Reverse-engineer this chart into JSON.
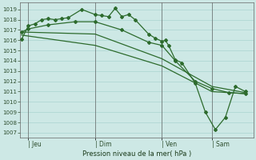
{
  "xlabel": "Pression niveau de la mer( hPa )",
  "ylim": [
    1006.5,
    1019.7
  ],
  "yticks": [
    1007,
    1008,
    1009,
    1010,
    1011,
    1012,
    1013,
    1014,
    1015,
    1016,
    1017,
    1018,
    1019
  ],
  "background_color": "#cde8e5",
  "grid_color": "#aad4d0",
  "line_color": "#2d6b2d",
  "xtick_labels": [
    "| Jeu",
    "| Dim",
    "| Ven",
    "| Sam"
  ],
  "xtick_positions": [
    10,
    90,
    170,
    230
  ],
  "xlim": [
    0,
    280
  ],
  "series1_x": [
    2,
    10,
    18,
    26,
    34,
    42,
    50,
    58,
    74,
    90,
    98,
    106,
    114,
    122,
    130,
    138,
    154,
    162,
    170,
    174,
    178,
    186,
    194,
    210,
    222,
    234,
    246,
    258,
    270
  ],
  "series1_y": [
    1016.1,
    1017.4,
    1017.6,
    1018.0,
    1018.1,
    1018.0,
    1018.1,
    1018.2,
    1019.0,
    1018.5,
    1018.4,
    1018.3,
    1019.1,
    1018.3,
    1018.5,
    1018.0,
    1016.6,
    1016.2,
    1015.9,
    1016.0,
    1015.5,
    1014.1,
    1013.8,
    1011.8,
    1009.0,
    1007.3,
    1008.5,
    1011.5,
    1011.0
  ],
  "series2_x": [
    2,
    10,
    34,
    66,
    90,
    122,
    154,
    170,
    186,
    210,
    230,
    250,
    270
  ],
  "series2_y": [
    1016.8,
    1017.1,
    1017.5,
    1017.8,
    1017.8,
    1017.0,
    1015.8,
    1015.5,
    1014.0,
    1012.0,
    1011.3,
    1010.9,
    1010.8
  ],
  "series3_x": [
    2,
    90,
    170,
    230,
    270
  ],
  "series3_y": [
    1016.8,
    1016.6,
    1014.2,
    1011.5,
    1010.9
  ],
  "series4_x": [
    2,
    90,
    170,
    230,
    270
  ],
  "series4_y": [
    1016.5,
    1015.5,
    1013.5,
    1011.0,
    1010.8
  ],
  "vlines": [
    10,
    90,
    170,
    230
  ]
}
